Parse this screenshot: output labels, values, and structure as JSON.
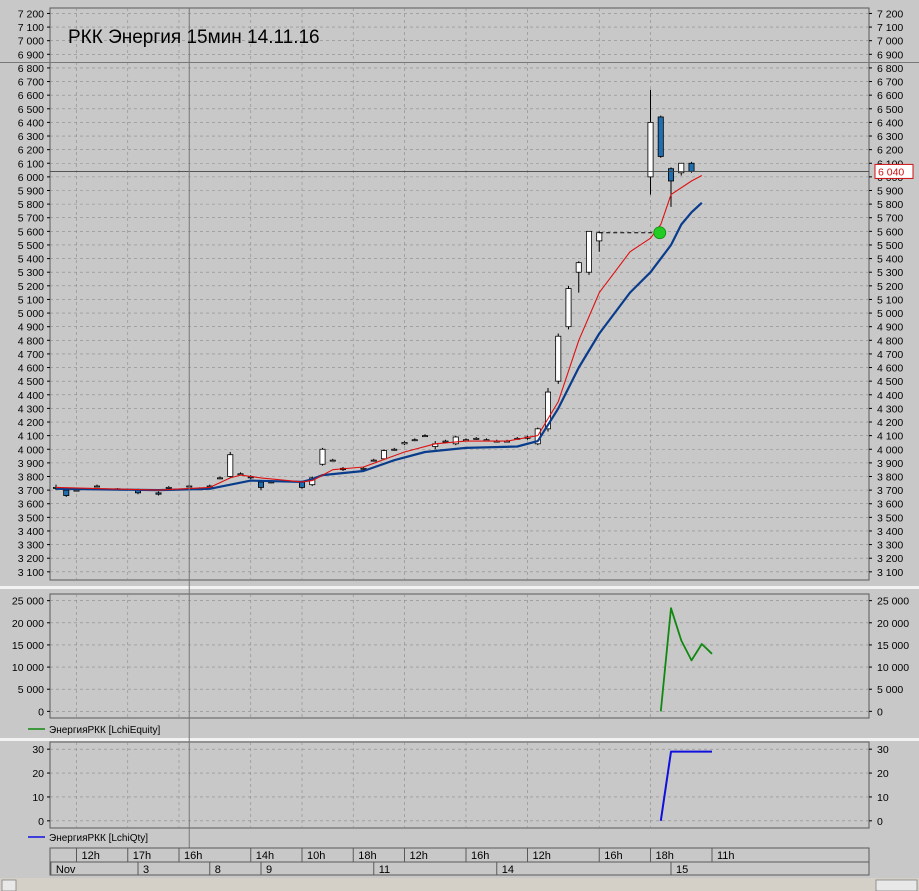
{
  "colors": {
    "background": "#c8c8c8",
    "grid": "#8a8a8a",
    "bull_candle": "#ffffff",
    "bear_candle": "#1f6fb0",
    "ma_fast": "#e01010",
    "ma_slow": "#0a3c8c",
    "equity_line": "#118811",
    "qty_line": "#1010dd",
    "signal_dot": "#22cc22",
    "price_badge": "#d01010"
  },
  "chart_data": [
    {
      "type": "candlestick",
      "title": "РКК Энергия 15мин 14.11.16",
      "ylim": [
        3040,
        7240
      ],
      "yticks": [
        3100,
        3200,
        3300,
        3400,
        3500,
        3600,
        3700,
        3800,
        3900,
        4000,
        4100,
        4200,
        4300,
        4400,
        4500,
        4600,
        4700,
        4800,
        4900,
        5000,
        5100,
        5200,
        5300,
        5400,
        5500,
        5600,
        5700,
        5800,
        5900,
        6000,
        6100,
        6200,
        6300,
        6400,
        6500,
        6600,
        6700,
        6800,
        6900,
        7000,
        7100,
        7200
      ],
      "ytick_labels": [
        "3 100",
        "3 200",
        "3 300",
        "3 400",
        "3 500",
        "3 600",
        "3 700",
        "3 800",
        "3 900",
        "4 000",
        "4 100",
        "4 200",
        "4 300",
        "4 400",
        "4 500",
        "4 600",
        "4 700",
        "4 800",
        "4 900",
        "5 000",
        "5 100",
        "5 200",
        "5 300",
        "5 400",
        "5 500",
        "5 600",
        "5 700",
        "5 800",
        "5 900",
        "6 000",
        "6 100",
        "6 200",
        "6 300",
        "6 400",
        "6 500",
        "6 600",
        "6 700",
        "6 800",
        "6 900",
        "7 000",
        "7 100",
        "7 200"
      ],
      "last_price_label": "6 040",
      "last_price": 6040,
      "x_count": 64,
      "candles": [
        {
          "i": 0,
          "o": 3720,
          "h": 3740,
          "l": 3700,
          "c": 3720
        },
        {
          "i": 1,
          "o": 3700,
          "h": 3710,
          "l": 3650,
          "c": 3660
        },
        {
          "i": 2,
          "o": 3700,
          "h": 3710,
          "l": 3690,
          "c": 3700
        },
        {
          "i": 4,
          "o": 3730,
          "h": 3740,
          "l": 3720,
          "c": 3730
        },
        {
          "i": 6,
          "o": 3710,
          "h": 3715,
          "l": 3700,
          "c": 3710
        },
        {
          "i": 8,
          "o": 3700,
          "h": 3710,
          "l": 3670,
          "c": 3680
        },
        {
          "i": 10,
          "o": 3680,
          "h": 3690,
          "l": 3660,
          "c": 3670
        },
        {
          "i": 11,
          "o": 3720,
          "h": 3730,
          "l": 3710,
          "c": 3720
        },
        {
          "i": 13,
          "o": 3730,
          "h": 3740,
          "l": 3720,
          "c": 3730
        },
        {
          "i": 14,
          "o": 3710,
          "h": 3720,
          "l": 3700,
          "c": 3710
        },
        {
          "i": 15,
          "o": 3730,
          "h": 3740,
          "l": 3720,
          "c": 3730
        },
        {
          "i": 16,
          "o": 3790,
          "h": 3800,
          "l": 3780,
          "c": 3790
        },
        {
          "i": 17,
          "o": 3800,
          "h": 3980,
          "l": 3790,
          "c": 3960
        },
        {
          "i": 18,
          "o": 3820,
          "h": 3830,
          "l": 3810,
          "c": 3820
        },
        {
          "i": 19,
          "o": 3800,
          "h": 3810,
          "l": 3780,
          "c": 3790
        },
        {
          "i": 20,
          "o": 3760,
          "h": 3770,
          "l": 3700,
          "c": 3720
        },
        {
          "i": 21,
          "o": 3760,
          "h": 3770,
          "l": 3750,
          "c": 3760
        },
        {
          "i": 24,
          "o": 3760,
          "h": 3770,
          "l": 3710,
          "c": 3720
        },
        {
          "i": 25,
          "o": 3740,
          "h": 3800,
          "l": 3730,
          "c": 3790
        },
        {
          "i": 26,
          "o": 3890,
          "h": 4010,
          "l": 3880,
          "c": 4000
        },
        {
          "i": 27,
          "o": 3920,
          "h": 3930,
          "l": 3910,
          "c": 3920
        },
        {
          "i": 28,
          "o": 3860,
          "h": 3870,
          "l": 3840,
          "c": 3850
        },
        {
          "i": 30,
          "o": 3860,
          "h": 3870,
          "l": 3850,
          "c": 3860
        },
        {
          "i": 31,
          "o": 3920,
          "h": 3930,
          "l": 3910,
          "c": 3920
        },
        {
          "i": 32,
          "o": 3930,
          "h": 4000,
          "l": 3920,
          "c": 3990
        },
        {
          "i": 33,
          "o": 4000,
          "h": 4010,
          "l": 3990,
          "c": 4000
        },
        {
          "i": 34,
          "o": 4040,
          "h": 4060,
          "l": 4030,
          "c": 4050
        },
        {
          "i": 35,
          "o": 4070,
          "h": 4080,
          "l": 4060,
          "c": 4070
        },
        {
          "i": 36,
          "o": 4100,
          "h": 4110,
          "l": 4090,
          "c": 4100
        },
        {
          "i": 37,
          "o": 4020,
          "h": 4060,
          "l": 4000,
          "c": 4040
        },
        {
          "i": 38,
          "o": 4060,
          "h": 4070,
          "l": 4050,
          "c": 4060
        },
        {
          "i": 39,
          "o": 4040,
          "h": 4100,
          "l": 4030,
          "c": 4090
        },
        {
          "i": 40,
          "o": 4070,
          "h": 4080,
          "l": 4060,
          "c": 4070
        },
        {
          "i": 41,
          "o": 4080,
          "h": 4090,
          "l": 4070,
          "c": 4080
        },
        {
          "i": 42,
          "o": 4070,
          "h": 4080,
          "l": 4060,
          "c": 4070
        },
        {
          "i": 43,
          "o": 4060,
          "h": 4070,
          "l": 4050,
          "c": 4060
        },
        {
          "i": 44,
          "o": 4060,
          "h": 4070,
          "l": 4050,
          "c": 4060
        },
        {
          "i": 45,
          "o": 4080,
          "h": 4090,
          "l": 4070,
          "c": 4080
        },
        {
          "i": 46,
          "o": 4080,
          "h": 4100,
          "l": 4070,
          "c": 4090
        },
        {
          "i": 47,
          "o": 4040,
          "h": 4160,
          "l": 4030,
          "c": 4150
        },
        {
          "i": 48,
          "o": 4150,
          "h": 4450,
          "l": 4130,
          "c": 4420
        },
        {
          "i": 49,
          "o": 4500,
          "h": 4850,
          "l": 4480,
          "c": 4830
        },
        {
          "i": 50,
          "o": 4900,
          "h": 5200,
          "l": 4880,
          "c": 5180
        },
        {
          "i": 51,
          "o": 5300,
          "h": 5380,
          "l": 5150,
          "c": 5370
        },
        {
          "i": 52,
          "o": 5300,
          "h": 5600,
          "l": 5280,
          "c": 5600
        },
        {
          "i": 53,
          "o": 5530,
          "h": 5600,
          "l": 5450,
          "c": 5590
        },
        {
          "i": 58,
          "o": 6000,
          "h": 6640,
          "l": 5870,
          "c": 6400
        },
        {
          "i": 59,
          "o": 6440,
          "h": 6450,
          "l": 6140,
          "c": 6150
        },
        {
          "i": 60,
          "o": 6060,
          "h": 6070,
          "l": 5780,
          "c": 5970
        },
        {
          "i": 61,
          "o": 6030,
          "h": 6100,
          "l": 6010,
          "c": 6100
        },
        {
          "i": 62,
          "o": 6100,
          "h": 6110,
          "l": 6030,
          "c": 6040
        }
      ],
      "ma_fast": [
        [
          0,
          3720
        ],
        [
          5,
          3710
        ],
        [
          10,
          3700
        ],
        [
          15,
          3720
        ],
        [
          17,
          3790
        ],
        [
          18,
          3810
        ],
        [
          20,
          3790
        ],
        [
          24,
          3760
        ],
        [
          25,
          3770
        ],
        [
          27,
          3850
        ],
        [
          30,
          3870
        ],
        [
          34,
          3980
        ],
        [
          37,
          4040
        ],
        [
          40,
          4060
        ],
        [
          44,
          4060
        ],
        [
          47,
          4100
        ],
        [
          49,
          4350
        ],
        [
          51,
          4800
        ],
        [
          53,
          5150
        ],
        [
          56,
          5450
        ],
        [
          58,
          5550
        ],
        [
          59,
          5650
        ],
        [
          60,
          5870
        ],
        [
          62,
          5970
        ],
        [
          63,
          6010
        ]
      ],
      "ma_slow": [
        [
          0,
          3710
        ],
        [
          10,
          3700
        ],
        [
          15,
          3710
        ],
        [
          17,
          3740
        ],
        [
          19,
          3770
        ],
        [
          24,
          3760
        ],
        [
          25,
          3780
        ],
        [
          26,
          3810
        ],
        [
          30,
          3840
        ],
        [
          33,
          3920
        ],
        [
          36,
          3980
        ],
        [
          40,
          4010
        ],
        [
          45,
          4020
        ],
        [
          47,
          4060
        ],
        [
          49,
          4300
        ],
        [
          51,
          4600
        ],
        [
          53,
          4850
        ],
        [
          56,
          5150
        ],
        [
          58,
          5300
        ],
        [
          59,
          5400
        ],
        [
          60,
          5500
        ],
        [
          61,
          5650
        ],
        [
          62,
          5740
        ],
        [
          63,
          5810
        ]
      ],
      "signal": {
        "i": 59,
        "price": 5590
      },
      "signal_level": {
        "from": 53,
        "to": 59,
        "price": 5590
      }
    },
    {
      "type": "line",
      "ylim": [
        -1500,
        26500
      ],
      "yticks": [
        0,
        5000,
        10000,
        15000,
        20000,
        25000
      ],
      "ytick_labels": [
        "0",
        "5 000",
        "10 000",
        "15 000",
        "20 000",
        "25 000"
      ],
      "series": [
        {
          "name": "ЭнергияРКК [LchiEquity]",
          "points": [
            [
              59,
              0
            ],
            [
              60,
              23300
            ],
            [
              61,
              16000
            ],
            [
              62,
              11500
            ],
            [
              63,
              15200
            ],
            [
              64,
              13000
            ]
          ]
        }
      ]
    },
    {
      "type": "line",
      "ylim": [
        -3,
        33
      ],
      "yticks": [
        0,
        10,
        20,
        30
      ],
      "ytick_labels": [
        "0",
        "10",
        "20",
        "30"
      ],
      "series": [
        {
          "name": "ЭнергияРКК [LchiQty]",
          "points": [
            [
              59,
              0
            ],
            [
              60,
              29
            ],
            [
              61,
              29
            ],
            [
              64,
              29
            ]
          ]
        }
      ]
    }
  ],
  "time_axis": {
    "hours": [
      {
        "label": "12h",
        "i": 2
      },
      {
        "label": "17h",
        "i": 7
      },
      {
        "label": "16h",
        "i": 12
      },
      {
        "label": "14h",
        "i": 19
      },
      {
        "label": "10h",
        "i": 24
      },
      {
        "label": "18h",
        "i": 29
      },
      {
        "label": "12h",
        "i": 34
      },
      {
        "label": "16h",
        "i": 40
      },
      {
        "label": "12h",
        "i": 46
      },
      {
        "label": "16h",
        "i": 53
      },
      {
        "label": "18h",
        "i": 58
      },
      {
        "label": "11h",
        "i": 64
      }
    ],
    "days": [
      {
        "label": "Nov",
        "i": -0.5
      },
      {
        "label": "3",
        "i": 8
      },
      {
        "label": "8",
        "i": 15
      },
      {
        "label": "9",
        "i": 20
      },
      {
        "label": "11",
        "i": 31
      },
      {
        "label": "14",
        "i": 43
      },
      {
        "label": "15",
        "i": 60
      }
    ],
    "hour_grid": [
      2,
      7,
      12,
      19,
      24,
      29,
      34,
      40,
      46,
      53,
      58
    ],
    "crosshair_i": 13
  }
}
